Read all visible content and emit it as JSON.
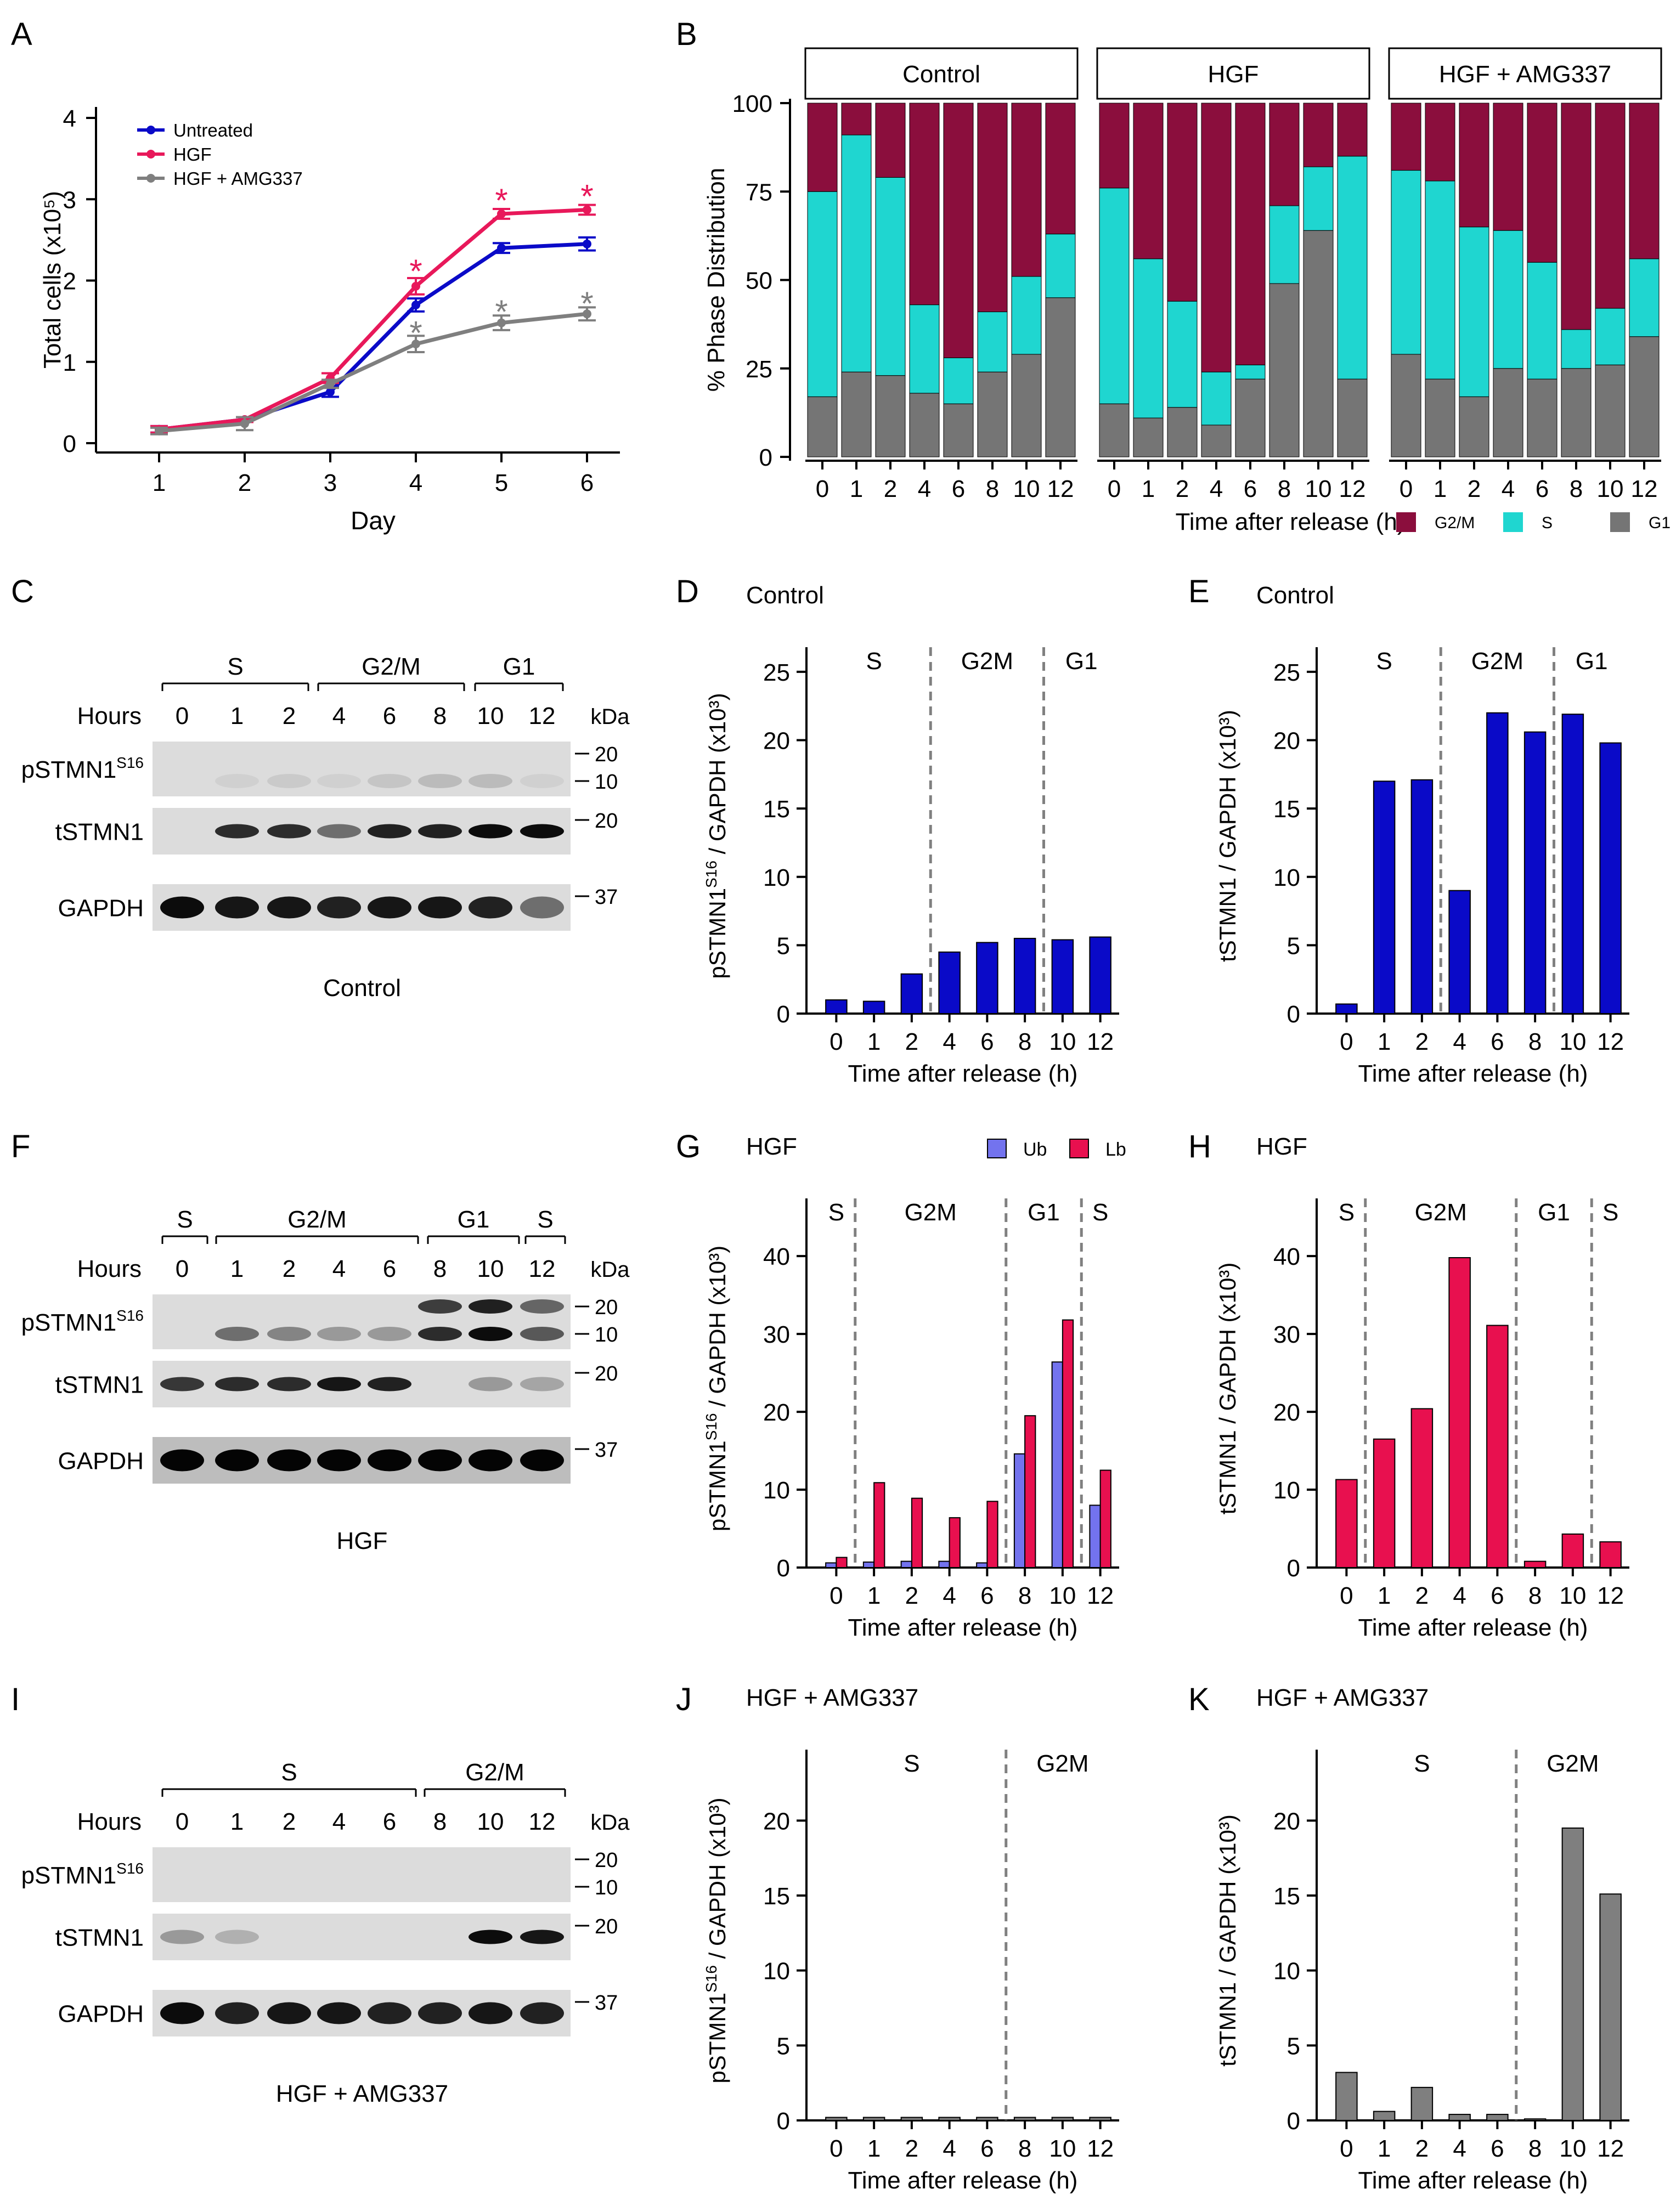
{
  "colors": {
    "blue": "#0a0ac8",
    "pink": "#e8185a",
    "gray": "#7f7f7f",
    "g2m": "#8b0e3d",
    "s": "#1fd6d0",
    "g1": "#757575",
    "ub": "#7373ee",
    "lb": "#e8104f",
    "axis": "#000000",
    "blot_bg": "#dcdcdc"
  },
  "panel_labels": [
    "A",
    "B",
    "C",
    "D",
    "E",
    "F",
    "G",
    "H",
    "I",
    "J",
    "K"
  ],
  "chart_data": [
    {
      "id": "A",
      "type": "line",
      "xlabel": "Day",
      "ylabel": "Total cells (x10⁵)",
      "x": [
        1,
        2,
        3,
        4,
        5,
        6
      ],
      "xlim": [
        0.8,
        6.4
      ],
      "ylim": [
        -0.1,
        4.1
      ],
      "yticks": [
        0,
        1,
        2,
        3,
        4
      ],
      "series": [
        {
          "name": "Untreated",
          "color": "#0a0ac8",
          "values": [
            0.17,
            0.29,
            0.63,
            1.7,
            2.4,
            2.45
          ],
          "err": [
            0.04,
            0.03,
            0.06,
            0.08,
            0.06,
            0.08
          ]
        },
        {
          "name": "HGF",
          "color": "#e8185a",
          "values": [
            0.17,
            0.29,
            0.8,
            1.93,
            2.82,
            2.87
          ],
          "err": [
            0.04,
            0.03,
            0.06,
            0.1,
            0.06,
            0.06
          ]
        },
        {
          "name": "HGF + AMG337",
          "color": "#7f7f7f",
          "values": [
            0.15,
            0.24,
            0.73,
            1.22,
            1.48,
            1.59
          ],
          "err": [
            0.04,
            0.08,
            0.05,
            0.1,
            0.09,
            0.08
          ]
        }
      ],
      "annotations": [
        {
          "x": 4,
          "y": 2.18,
          "text": "*",
          "color": "#e8185a"
        },
        {
          "x": 5,
          "y": 3.05,
          "text": "*",
          "color": "#e8185a"
        },
        {
          "x": 6,
          "y": 3.1,
          "text": "*",
          "color": "#e8185a"
        },
        {
          "x": 4,
          "y": 1.42,
          "text": "*",
          "color": "#7f7f7f"
        },
        {
          "x": 5,
          "y": 1.68,
          "text": "*",
          "color": "#7f7f7f"
        },
        {
          "x": 6,
          "y": 1.78,
          "text": "*",
          "color": "#7f7f7f"
        }
      ]
    },
    {
      "id": "B",
      "type": "bar",
      "ylabel": "% Phase Distribution",
      "xlabel": "Time after release (h)",
      "categories": [
        "0",
        "1",
        "2",
        "4",
        "6",
        "8",
        "10",
        "12"
      ],
      "ylim": [
        0,
        100
      ],
      "yticks": [
        0,
        25,
        50,
        75,
        100
      ],
      "legend": [
        "G2/M",
        "S",
        "G1"
      ],
      "facets": [
        {
          "title": "Control",
          "g1": [
            17,
            24,
            23,
            18,
            15,
            24,
            29,
            45
          ],
          "s": [
            58,
            67,
            56,
            25,
            13,
            17,
            22,
            18
          ]
        },
        {
          "title": "HGF",
          "g1": [
            15,
            11,
            14,
            9,
            22,
            49,
            64,
            22
          ],
          "s": [
            61,
            45,
            30,
            15,
            4,
            22,
            18,
            63
          ]
        },
        {
          "title": "HGF + AMG337",
          "g1": [
            29,
            22,
            17,
            25,
            22,
            25,
            26,
            34
          ],
          "s": [
            52,
            56,
            48,
            39,
            33,
            11,
            16,
            22
          ]
        }
      ]
    },
    {
      "id": "D",
      "type": "bar",
      "title": "Control",
      "ylabel": "pSTMN1S16 / GAPDH (x10³)",
      "xlabel": "Time after release (h)",
      "categories": [
        "0",
        "1",
        "2",
        "4",
        "6",
        "8",
        "10",
        "12"
      ],
      "values": [
        1.0,
        0.9,
        2.9,
        4.5,
        5.2,
        5.5,
        5.4,
        5.6
      ],
      "ylim": [
        0,
        26
      ],
      "yticks": [
        0,
        5,
        10,
        15,
        20,
        25
      ],
      "phases": [
        {
          "label": "S"
        },
        {
          "label": "G2M"
        },
        {
          "label": "G1"
        }
      ]
    },
    {
      "id": "E",
      "type": "bar",
      "title": "Control",
      "ylabel": "tSTMN1 / GAPDH (x10³)",
      "xlabel": "Time after release (h)",
      "categories": [
        "0",
        "1",
        "2",
        "4",
        "6",
        "8",
        "10",
        "12"
      ],
      "values": [
        0.7,
        17.0,
        17.1,
        9.0,
        22.0,
        20.6,
        21.9,
        19.8
      ],
      "ylim": [
        0,
        26
      ],
      "yticks": [
        0,
        5,
        10,
        15,
        20,
        25
      ],
      "phases": [
        {
          "label": "S"
        },
        {
          "label": "G2M"
        },
        {
          "label": "G1"
        }
      ]
    },
    {
      "id": "G",
      "type": "bar",
      "title": "HGF",
      "ylabel": "pSTMN1S16 / GAPDH (x10³)",
      "xlabel": "Time after release (h)",
      "categories": [
        "0",
        "1",
        "2",
        "4",
        "6",
        "8",
        "10",
        "12"
      ],
      "series": [
        {
          "name": "Ub",
          "values": [
            0.6,
            0.7,
            0.8,
            0.8,
            0.6,
            14.6,
            26.4,
            8.0
          ]
        },
        {
          "name": "Lb",
          "values": [
            1.3,
            10.9,
            8.9,
            6.4,
            8.5,
            19.5,
            31.8,
            12.5
          ]
        }
      ],
      "ylim": [
        0,
        46
      ],
      "yticks": [
        0,
        10,
        20,
        30,
        40
      ],
      "phases": [
        {
          "label": "S"
        },
        {
          "label": "G2M"
        },
        {
          "label": "G1"
        },
        {
          "label": "S"
        }
      ]
    },
    {
      "id": "H",
      "type": "bar",
      "title": "HGF",
      "ylabel": "tSTMN1 / GAPDH (x10³)",
      "xlabel": "Time after release (h)",
      "categories": [
        "0",
        "1",
        "2",
        "4",
        "6",
        "8",
        "10",
        "12"
      ],
      "values": [
        11.3,
        16.5,
        20.4,
        39.8,
        31.1,
        0.8,
        4.3,
        3.3
      ],
      "ylim": [
        0,
        46
      ],
      "yticks": [
        0,
        10,
        20,
        30,
        40
      ],
      "phases": [
        {
          "label": "S"
        },
        {
          "label": "G2M"
        },
        {
          "label": "G1"
        },
        {
          "label": "S"
        }
      ]
    },
    {
      "id": "J",
      "type": "bar",
      "title": "HGF + AMG337",
      "ylabel": "pSTMN1S16 / GAPDH (x10³)",
      "xlabel": "Time after release (h)",
      "categories": [
        "0",
        "1",
        "2",
        "4",
        "6",
        "8",
        "10",
        "12"
      ],
      "values": [
        0.2,
        0.2,
        0.2,
        0.2,
        0.2,
        0.2,
        0.2,
        0.2
      ],
      "ylim": [
        0,
        24
      ],
      "yticks": [
        0,
        5,
        10,
        15,
        20
      ],
      "phases": [
        {
          "label": "S"
        },
        {
          "label": "G2M"
        }
      ]
    },
    {
      "id": "K",
      "type": "bar",
      "title": "HGF + AMG337",
      "ylabel": "tSTMN1 / GAPDH (x10³)",
      "xlabel": "Time after release (h)",
      "categories": [
        "0",
        "1",
        "2",
        "4",
        "6",
        "8",
        "10",
        "12"
      ],
      "values": [
        3.2,
        0.6,
        2.2,
        0.4,
        0.4,
        0.1,
        19.5,
        15.1
      ],
      "ylim": [
        0,
        24
      ],
      "yticks": [
        0,
        5,
        10,
        15,
        20
      ],
      "phases": [
        {
          "label": "S"
        },
        {
          "label": "G2M"
        }
      ]
    }
  ],
  "blots": [
    {
      "id": "C",
      "caption": "Control",
      "hours_label": "Hours",
      "hours": [
        "0",
        "1",
        "2",
        "4",
        "6",
        "8",
        "10",
        "12"
      ],
      "kda_label": "kDa",
      "phases": [
        {
          "label": "S"
        },
        {
          "label": "G2/M"
        },
        {
          "label": "G1"
        }
      ],
      "rows": [
        {
          "name": "pSTMN1",
          "sup": "S16",
          "markers": [
            "20",
            "10"
          ],
          "bands": [
            0,
            0.05,
            0.08,
            0.05,
            0.1,
            0.15,
            0.15,
            0.05
          ]
        },
        {
          "name": "tSTMN1",
          "markers": [
            "20"
          ],
          "bands": [
            0,
            0.8,
            0.8,
            0.5,
            0.85,
            0.85,
            0.95,
            0.95
          ]
        },
        {
          "name": "GAPDH",
          "markers": [
            "37"
          ],
          "bands": [
            0.95,
            0.9,
            0.9,
            0.85,
            0.9,
            0.9,
            0.85,
            0.5
          ]
        }
      ]
    },
    {
      "id": "F",
      "caption": "HGF",
      "hours_label": "Hours",
      "hours": [
        "0",
        "1",
        "2",
        "4",
        "6",
        "8",
        "10",
        "12"
      ],
      "kda_label": "kDa",
      "phases": [
        {
          "label": "S"
        },
        {
          "label": "G2/M"
        },
        {
          "label": "G1"
        },
        {
          "label": "S"
        }
      ],
      "rows": [
        {
          "name": "pSTMN1",
          "sup": "S16",
          "markers": [
            "20",
            "10"
          ],
          "bands": [
            0,
            0.5,
            0.4,
            0.3,
            0.3,
            0.8,
            0.95,
            0.6
          ]
        },
        {
          "name": "tSTMN1",
          "markers": [
            "20"
          ],
          "bands": [
            0.75,
            0.8,
            0.8,
            0.9,
            0.85,
            0,
            0.3,
            0.25
          ]
        },
        {
          "name": "GAPDH",
          "markers": [
            "37"
          ],
          "bands": [
            0.98,
            0.98,
            0.98,
            0.98,
            0.98,
            0.98,
            0.98,
            0.98
          ]
        }
      ]
    },
    {
      "id": "I",
      "caption": "HGF + AMG337",
      "hours_label": "Hours",
      "hours": [
        "0",
        "1",
        "2",
        "4",
        "6",
        "8",
        "10",
        "12"
      ],
      "kda_label": "kDa",
      "phases": [
        {
          "label": "S"
        },
        {
          "label": "G2/M"
        }
      ],
      "rows": [
        {
          "name": "pSTMN1",
          "sup": "S16",
          "markers": [
            "20",
            "10"
          ],
          "bands": [
            0,
            0,
            0,
            0,
            0,
            0,
            0,
            0
          ]
        },
        {
          "name": "tSTMN1",
          "markers": [
            "20"
          ],
          "bands": [
            0.3,
            0.2,
            0,
            0,
            0,
            0,
            0.95,
            0.9
          ]
        },
        {
          "name": "GAPDH",
          "markers": [
            "37"
          ],
          "bands": [
            0.95,
            0.85,
            0.9,
            0.9,
            0.85,
            0.85,
            0.9,
            0.85
          ]
        }
      ]
    }
  ]
}
